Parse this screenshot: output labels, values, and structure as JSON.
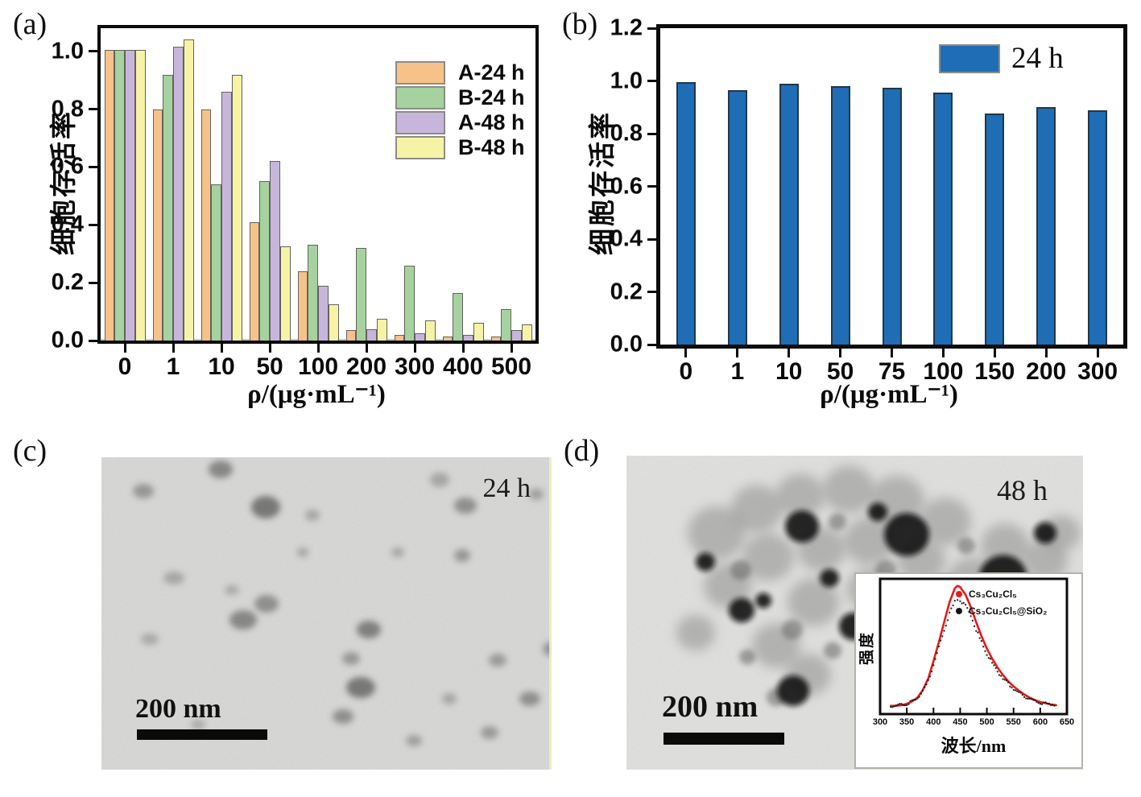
{
  "figure": {
    "panels": {
      "a": {
        "label": "(a)"
      },
      "b": {
        "label": "(b)"
      },
      "c": {
        "label": "(c)",
        "time_label": "24 h",
        "scale_label": "200 nm"
      },
      "d": {
        "label": "(d)",
        "time_label": "48 h",
        "scale_label": "200 nm"
      }
    }
  },
  "colors": {
    "frame": "#0b0b0b",
    "bar_border_a": "#63635b",
    "bar_border_b": "#22364a",
    "blue": "#1E6DB5",
    "red_curve": "#E31B1C",
    "black_curve": "#151515"
  },
  "chart_data": [
    {
      "id": "a",
      "type": "bar",
      "title": "",
      "categories": [
        "0",
        "1",
        "10",
        "50",
        "100",
        "200",
        "300",
        "400",
        "500"
      ],
      "series": [
        {
          "name": "A-24 h",
          "color": "#F7C289",
          "values": [
            1.005,
            0.8,
            0.8,
            0.41,
            0.24,
            0.035,
            0.02,
            0.015,
            0.015
          ]
        },
        {
          "name": "B-24 h",
          "color": "#A5D29E",
          "values": [
            1.005,
            0.92,
            0.54,
            0.55,
            0.33,
            0.32,
            0.26,
            0.165,
            0.11
          ]
        },
        {
          "name": "A-48 h",
          "color": "#C8B5DB",
          "values": [
            1.005,
            1.015,
            0.86,
            0.62,
            0.19,
            0.04,
            0.025,
            0.02,
            0.035
          ]
        },
        {
          "name": "B-48 h",
          "color": "#F7F3A6",
          "values": [
            1.005,
            1.04,
            0.92,
            0.325,
            0.125,
            0.075,
            0.07,
            0.06,
            0.055
          ]
        }
      ],
      "xlabel": "ρ/(μg·mL⁻¹)",
      "ylabel": "细胞存活率",
      "ylim": [
        0,
        1.08
      ],
      "yticks": [
        "0.0",
        "0.2",
        "0.4",
        "0.6",
        "0.8",
        "1.0"
      ],
      "grid": false,
      "legend_position": "upper right"
    },
    {
      "id": "b",
      "type": "bar",
      "title": "",
      "categories": [
        "0",
        "1",
        "10",
        "50",
        "75",
        "100",
        "150",
        "200",
        "300"
      ],
      "series": [
        {
          "name": "24 h",
          "color": "#1E6DB5",
          "values": [
            0.995,
            0.965,
            0.99,
            0.98,
            0.975,
            0.955,
            0.875,
            0.9,
            0.89
          ]
        }
      ],
      "xlabel": "ρ/(μg·mL⁻¹)",
      "ylabel": "细胞存活率",
      "ylim": [
        0,
        1.2
      ],
      "yticks": [
        "0.0",
        "0.2",
        "0.4",
        "0.6",
        "0.8",
        "1.0",
        "1.2"
      ],
      "grid": false,
      "legend_position": "upper right"
    },
    {
      "id": "d_inset",
      "type": "line",
      "title": "",
      "x": [
        320,
        330,
        340,
        350,
        360,
        370,
        380,
        390,
        400,
        410,
        420,
        430,
        440,
        445,
        450,
        460,
        470,
        480,
        490,
        500,
        510,
        520,
        530,
        540,
        550,
        560,
        570,
        580,
        590,
        600,
        610,
        620,
        630
      ],
      "series": [
        {
          "name": "Cs₃Cu₂Cl₅",
          "color": "#E31B1C",
          "values": [
            0.015,
            0.015,
            0.02,
            0.03,
            0.05,
            0.08,
            0.14,
            0.23,
            0.37,
            0.52,
            0.68,
            0.84,
            0.95,
            0.97,
            0.96,
            0.9,
            0.8,
            0.68,
            0.57,
            0.47,
            0.39,
            0.32,
            0.26,
            0.21,
            0.17,
            0.135,
            0.105,
            0.08,
            0.06,
            0.045,
            0.035,
            0.025,
            0.02
          ]
        },
        {
          "name": "Cs₃Cu₂Cl₅@SiO₂",
          "color": "#151515",
          "values": [
            0.015,
            0.015,
            0.02,
            0.03,
            0.05,
            0.075,
            0.13,
            0.21,
            0.34,
            0.48,
            0.62,
            0.75,
            0.84,
            0.86,
            0.85,
            0.81,
            0.73,
            0.62,
            0.52,
            0.43,
            0.355,
            0.29,
            0.235,
            0.19,
            0.15,
            0.12,
            0.09,
            0.07,
            0.055,
            0.04,
            0.03,
            0.022,
            0.018
          ]
        }
      ],
      "xlabel": "波长/nm",
      "ylabel": "强度",
      "xlim": [
        300,
        650
      ],
      "xticks": [
        "300",
        "350",
        "400",
        "450",
        "500",
        "550",
        "600",
        "650"
      ],
      "grid": false,
      "legend_position": "upper right"
    }
  ]
}
